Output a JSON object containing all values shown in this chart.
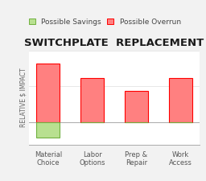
{
  "title": "SWITCHPLATE  REPLACEMENT",
  "categories": [
    "Material\nChoice",
    "Labor\nOptions",
    "Prep &\nRepair",
    "Work\nAccess"
  ],
  "overrun_values": [
    0.82,
    0.62,
    0.44,
    0.62
  ],
  "savings_values": [
    -0.22,
    0,
    0,
    0
  ],
  "overrun_color": "#FF8080",
  "overrun_edge_color": "#FF0000",
  "savings_color": "#B8E090",
  "savings_edge_color": "#70B040",
  "ylabel": "RELATIVE $ IMPACT",
  "background_color": "#F2F2F2",
  "plot_bg_color": "#FFFFFF",
  "legend_savings": "Possible Savings",
  "legend_overrun": "Possible Overrun",
  "title_fontsize": 9.5,
  "axis_fontsize": 5.5,
  "tick_fontsize": 6.0,
  "legend_fontsize": 6.5,
  "bar_width": 0.52
}
